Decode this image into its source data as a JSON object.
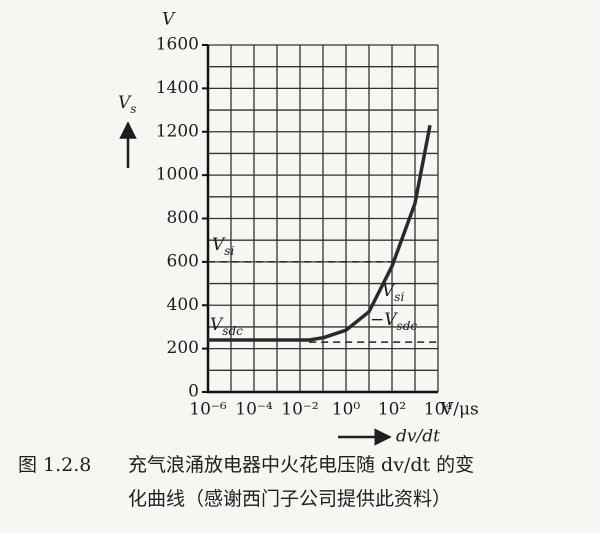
{
  "chart_data": {
    "type": "line",
    "y_axis_label": "V",
    "y_arrow_label": {
      "main": "V",
      "sub": "s"
    },
    "x_unit_label": "V/μs",
    "x_axis_label": "dv/dt",
    "x_log": true,
    "xlim": [
      1e-06,
      10000
    ],
    "xticks": [
      {
        "value": 1e-06,
        "label": "10⁻⁶"
      },
      {
        "value": 0.0001,
        "label": "10⁻⁴"
      },
      {
        "value": 0.01,
        "label": "10⁻²"
      },
      {
        "value": 1,
        "label": "10⁰"
      },
      {
        "value": 100,
        "label": "10²"
      },
      {
        "value": 10000,
        "label": "10⁴"
      }
    ],
    "xgrid": [
      1e-06,
      1e-05,
      0.0001,
      0.001,
      0.01,
      0.1,
      1,
      10,
      100,
      1000,
      10000
    ],
    "ylim": [
      0,
      1600
    ],
    "yticks": [
      0,
      200,
      400,
      600,
      800,
      1000,
      1200,
      1400,
      1600
    ],
    "ygrid": [
      0,
      100,
      200,
      300,
      400,
      500,
      600,
      700,
      800,
      900,
      1000,
      1100,
      1200,
      1300,
      1400,
      1500,
      1600
    ],
    "grid": true,
    "color": "#2a2a2a",
    "x": [
      1e-06,
      0.025,
      0.1,
      1,
      10,
      100,
      1000,
      4500
    ],
    "values": [
      240,
      240,
      250,
      285,
      370,
      580,
      870,
      1230
    ],
    "reference_lines": [
      {
        "value": 600,
        "label": {
          "main": "V",
          "sub": "si"
        }
      },
      {
        "value": 230,
        "label": {
          "main": "V",
          "sub": "sdc"
        }
      }
    ],
    "difference_label": {
      "line1": {
        "main": "V",
        "sub": "si"
      },
      "line2": {
        "main": "−V",
        "sub": "sdc"
      }
    },
    "caption": {
      "number": "图 1.2.8",
      "lines": [
        "充气浪涌放电器中火花电压随 dv/dt 的变",
        "化曲线（感谢西门子公司提供此资料）"
      ]
    }
  }
}
